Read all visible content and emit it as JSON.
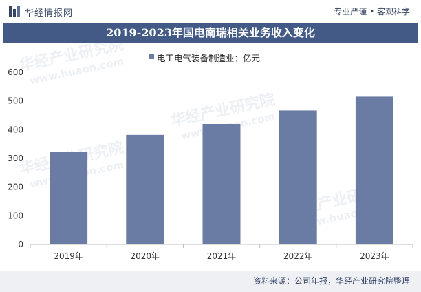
{
  "header": {
    "brand": "华经情报网",
    "slogan": "专业严谨 • 客观科学"
  },
  "title": "2019-2023年国电南瑞相关业务收入变化",
  "legend": {
    "label": "电工电气装备制造业：亿元"
  },
  "source": "资料来源：公司年报，华经产业研究院整理",
  "watermark": {
    "text_cn": "华经产业研究院",
    "text_en": "www.huaon.com"
  },
  "colors": {
    "bar": "#6a7ca4",
    "title_bg": "#435a86",
    "footer_bg": "#eef0f4"
  },
  "chart_data": {
    "type": "bar",
    "categories": [
      "2019年",
      "2020年",
      "2021年",
      "2022年",
      "2023年"
    ],
    "series": [
      {
        "name": "电工电气装备制造业：亿元",
        "values": [
          322,
          382,
          420,
          467,
          515
        ]
      }
    ],
    "ylim": [
      0,
      600
    ],
    "yticks": [
      0,
      100,
      200,
      300,
      400,
      500,
      600
    ],
    "grid": false,
    "legend_position": "top-center"
  }
}
